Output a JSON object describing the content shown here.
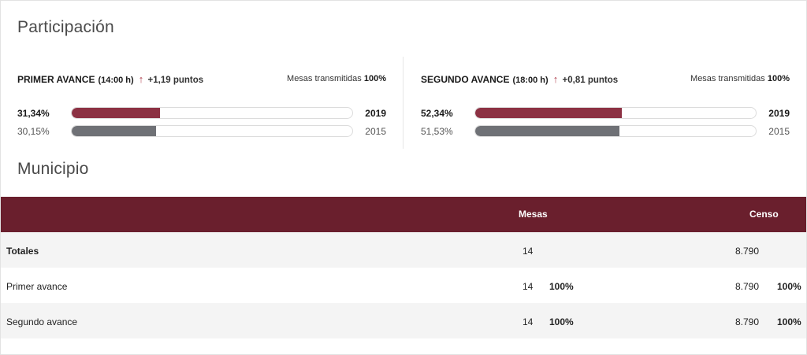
{
  "participacion": {
    "title": "Participación",
    "primer": {
      "name": "PRIMER AVANCE",
      "time": "(14:00 h)",
      "arrow": "↑",
      "delta": "+1,19 puntos",
      "mesas_label": "Mesas transmitidas",
      "mesas_value": "100%",
      "current": {
        "pct_label": "31,34%",
        "value": 31.34,
        "year": "2019"
      },
      "previous": {
        "pct_label": "30,15%",
        "value": 30.15,
        "year": "2015"
      }
    },
    "segundo": {
      "name": "SEGUNDO AVANCE",
      "time": "(18:00 h)",
      "arrow": "↑",
      "delta": "+0,81 puntos",
      "mesas_label": "Mesas transmitidas",
      "mesas_value": "100%",
      "current": {
        "pct_label": "52,34%",
        "value": 52.34,
        "year": "2019"
      },
      "previous": {
        "pct_label": "51,53%",
        "value": 51.53,
        "year": "2015"
      }
    }
  },
  "municipio": {
    "title": "Municipio",
    "columns": {
      "mesas": "Mesas",
      "censo": "Censo"
    },
    "rows": [
      {
        "label": "Totales",
        "mesas": "14",
        "mesas_pct": "",
        "censo": "8.790",
        "censo_pct": ""
      },
      {
        "label": "Primer avance",
        "mesas": "14",
        "mesas_pct": "100%",
        "censo": "8.790",
        "censo_pct": "100%"
      },
      {
        "label": "Segundo avance",
        "mesas": "14",
        "mesas_pct": "100%",
        "censo": "8.790",
        "censo_pct": "100%"
      }
    ]
  },
  "colors": {
    "bar_current": "#8c3143",
    "bar_previous": "#6f7176",
    "table_header": "#6a1f2d",
    "arrow": "#b0414f"
  },
  "icons": {
    "delta_arrow": "arrow-up-icon"
  }
}
